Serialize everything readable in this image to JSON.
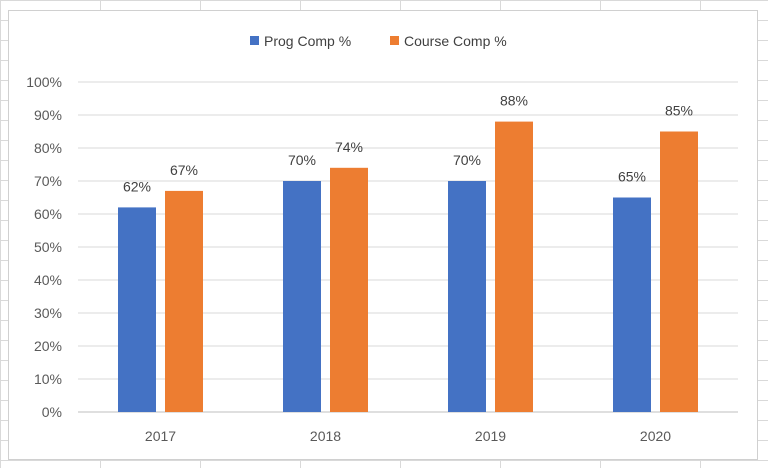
{
  "chart_data": {
    "type": "bar",
    "categories": [
      "2017",
      "2018",
      "2019",
      "2020"
    ],
    "series": [
      {
        "name": "Prog Comp %",
        "values": [
          62,
          70,
          70,
          65
        ],
        "labels": [
          "62%",
          "70%",
          "70%",
          "65%"
        ],
        "color": "#4472C4"
      },
      {
        "name": "Course Comp %",
        "values": [
          67,
          74,
          88,
          85
        ],
        "labels": [
          "67%",
          "74%",
          "88%",
          "85%"
        ],
        "color": "#ED7D31"
      }
    ],
    "ylim": [
      0,
      100
    ],
    "yticks": [
      0,
      10,
      20,
      30,
      40,
      50,
      60,
      70,
      80,
      90,
      100
    ],
    "ytick_labels": [
      "0%",
      "10%",
      "20%",
      "30%",
      "40%",
      "50%",
      "60%",
      "70%",
      "80%",
      "90%",
      "100%"
    ],
    "grid": true,
    "legend_position": "top-center",
    "gridline_color": "#d9d9d9",
    "axis_color": "#bfbfbf"
  }
}
